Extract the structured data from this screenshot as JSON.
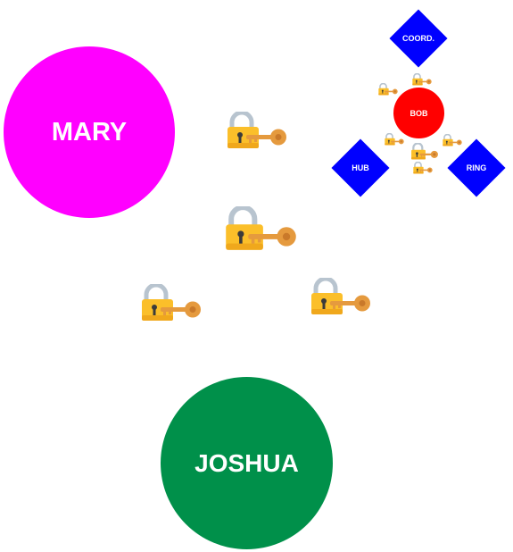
{
  "diagram": {
    "nodes": {
      "mary": {
        "label": "MARY",
        "shape": "circle",
        "color": "#ff00ff"
      },
      "joshua": {
        "label": "JOSHUA",
        "shape": "circle",
        "color": "#00904a"
      },
      "bob": {
        "label": "BOB",
        "shape": "circle",
        "color": "#ff0000"
      },
      "coord": {
        "label": "COORD.",
        "shape": "diamond",
        "color": "#0000ff"
      },
      "hub": {
        "label": "HUB",
        "shape": "diamond",
        "color": "#0000ff"
      },
      "ring": {
        "label": "RING",
        "shape": "diamond",
        "color": "#0000ff"
      }
    },
    "icons": {
      "symbol": "lock-with-key-icon",
      "colors": {
        "lock_body": "#fbbf2a",
        "shackle": "#b8c4cf",
        "key": "#e59a3e"
      }
    }
  }
}
